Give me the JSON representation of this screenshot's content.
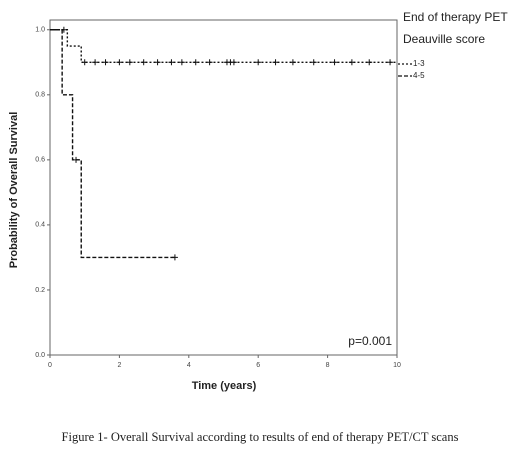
{
  "chart_data": {
    "type": "survival",
    "ylabel": "Probability of Overall Survival",
    "xlabel": "Time (years)",
    "legend_title": [
      "End of therapy PET",
      "Deauville score"
    ],
    "annotation": "p=0.001",
    "caption": "Figure 1- Overall Survival according to results of end of therapy PET/CT scans",
    "xlim": [
      0,
      10
    ],
    "xticks": [
      0,
      2,
      4,
      6,
      8,
      10
    ],
    "ylim": [
      0,
      1.03
    ],
    "yticks": [
      {
        "value": 0,
        "label": "0.0"
      },
      {
        "value": 0.2,
        "label": "0.2"
      },
      {
        "value": 0.4,
        "label": "0.4"
      },
      {
        "value": 0.6,
        "label": "0.6"
      },
      {
        "value": 0.8,
        "label": "0.8"
      },
      {
        "value": 1,
        "label": "1.0"
      }
    ],
    "series": [
      {
        "name": "1-3",
        "color": "#111",
        "dash": "2,2",
        "x": [
          0,
          0.5,
          0.5,
          0.9,
          0.9,
          10
        ],
        "values": [
          1,
          1,
          0.95,
          0.95,
          0.9,
          0.9
        ],
        "censored_x": [
          0.4,
          1.0,
          1.3,
          1.6,
          2.0,
          2.3,
          2.7,
          3.1,
          3.5,
          3.8,
          4.2,
          4.6,
          5.1,
          5.2,
          5.3,
          6.0,
          6.5,
          7.0,
          7.6,
          8.2,
          8.7,
          9.2,
          9.8
        ],
        "censored_values": [
          1,
          0.9,
          0.9,
          0.9,
          0.9,
          0.9,
          0.9,
          0.9,
          0.9,
          0.9,
          0.9,
          0.9,
          0.9,
          0.9,
          0.9,
          0.9,
          0.9,
          0.9,
          0.9,
          0.9,
          0.9,
          0.9,
          0.9
        ]
      },
      {
        "name": "4-5",
        "color": "#111",
        "dash": "4,2",
        "x": [
          0,
          0.35,
          0.35,
          0.65,
          0.65,
          0.9,
          0.9,
          3.6
        ],
        "values": [
          1,
          1,
          0.8,
          0.8,
          0.6,
          0.6,
          0.3,
          0.3
        ],
        "censored_x": [
          0.75,
          3.6
        ],
        "censored_values": [
          0.6,
          0.3
        ]
      }
    ]
  }
}
